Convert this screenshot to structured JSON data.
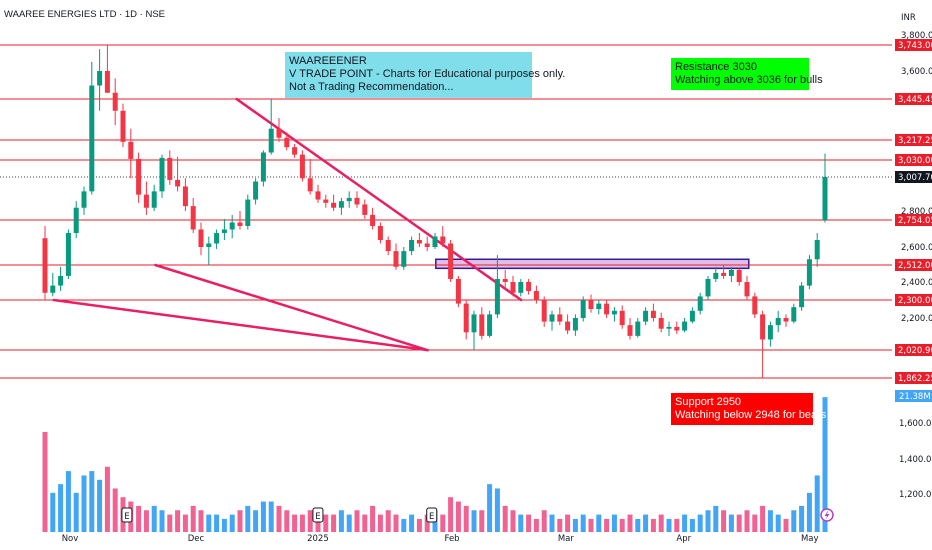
{
  "header": {
    "title": "WAAREE ENERGIES LTD · 1D · NSE"
  },
  "currency": "INR",
  "colors": {
    "up": "#089981",
    "down": "#f23645",
    "level_line": "#e91e2b",
    "trendline": "#e91e63",
    "zone_fill": "#e1bee7",
    "zone_border": "#311b92",
    "vol_up": "#42a5f5",
    "vol_down": "#f06292",
    "note_blue": "#80deea",
    "note_green": "#00ff00",
    "note_red": "#ff0000"
  },
  "notes": {
    "info": [
      "WAAREEENER",
      "V TRADE POINT - Charts for Educational purposes only.",
      "Not a Trading Recommendation..."
    ],
    "resistance": [
      "Resistance 3030",
      "Watching above 3036 for bulls"
    ],
    "support": [
      "Support 2950",
      "Watching below 2948 for bears"
    ]
  },
  "chart_data": {
    "type": "candlestick",
    "price_axis_ticks": [
      "3,800.00",
      "3,600.00",
      "2,800.00",
      "2,600.00",
      "2,400.00",
      "2,200.00"
    ],
    "horizontal_levels": [
      {
        "value": 3743.0,
        "label": "3,743.00"
      },
      {
        "value": 3445.45,
        "label": "3,445.45"
      },
      {
        "value": 3217.25,
        "label": "3,217.25"
      },
      {
        "value": 3030.0,
        "label": "3,030.00"
      },
      {
        "value": 2754.05,
        "label": "2,754.05"
      },
      {
        "value": 2512.0,
        "label": "2,512.00"
      },
      {
        "value": 2300.0,
        "label": "2,300.00"
      },
      {
        "value": 2020.9,
        "label": "2,020.90"
      },
      {
        "value": 1862.25,
        "label": "1,862.25"
      }
    ],
    "last_price": {
      "value": 3007.7,
      "label": "3,007.70"
    },
    "resistance_zone": {
      "from_date": "2025-01-30",
      "to_date": "2025-04-17",
      "low": 2490,
      "high": 2540
    },
    "trendlines": [
      {
        "from": {
          "date": "2024-10-28",
          "price": 2300
        },
        "to": {
          "date": "2025-01-28",
          "price": 2020
        }
      },
      {
        "from": {
          "date": "2024-11-22",
          "price": 2512
        },
        "to": {
          "date": "2025-01-28",
          "price": 2020
        }
      },
      {
        "from": {
          "date": "2024-12-12",
          "price": 3445
        },
        "to": {
          "date": "2025-02-20",
          "price": 2300
        }
      }
    ],
    "volume_axis_ticks": [
      "1,600.00",
      "1,400.00",
      "1,200.00"
    ],
    "volume_last": {
      "label": "21.38M"
    },
    "x_ticks": [
      {
        "label": "Nov",
        "date": "2024-11-01"
      },
      {
        "label": "Dec",
        "date": "2024-12-02"
      },
      {
        "label": "2025",
        "date": "2025-01-01"
      },
      {
        "label": "Feb",
        "date": "2025-02-03"
      },
      {
        "label": "Mar",
        "date": "2025-03-03"
      },
      {
        "label": "Apr",
        "date": "2025-04-01"
      },
      {
        "label": "May",
        "date": "2025-05-02"
      }
    ],
    "event_markers": [
      {
        "label": "E",
        "date": "2024-11-15"
      },
      {
        "label": "E",
        "date": "2025-01-01"
      },
      {
        "label": "E",
        "date": "2025-01-29"
      }
    ],
    "candles": [
      {
        "o": 2650,
        "h": 2720,
        "l": 2300,
        "c": 2340,
        "v": 23
      },
      {
        "o": 2340,
        "h": 2460,
        "l": 2320,
        "c": 2380,
        "v": 9
      },
      {
        "o": 2380,
        "h": 2500,
        "l": 2350,
        "c": 2440,
        "v": 11
      },
      {
        "o": 2440,
        "h": 2700,
        "l": 2420,
        "c": 2680,
        "v": 14
      },
      {
        "o": 2680,
        "h": 2860,
        "l": 2650,
        "c": 2820,
        "v": 9
      },
      {
        "o": 2820,
        "h": 2950,
        "l": 2780,
        "c": 2920,
        "v": 13
      },
      {
        "o": 2920,
        "h": 3650,
        "l": 2900,
        "c": 3520,
        "v": 14
      },
      {
        "o": 3520,
        "h": 3720,
        "l": 3380,
        "c": 3600,
        "v": 12
      },
      {
        "o": 3600,
        "h": 3743,
        "l": 3480,
        "c": 3480,
        "v": 15
      },
      {
        "o": 3480,
        "h": 3560,
        "l": 3300,
        "c": 3380,
        "v": 10
      },
      {
        "o": 3380,
        "h": 3420,
        "l": 3150,
        "c": 3200,
        "v": 8
      },
      {
        "o": 3200,
        "h": 3280,
        "l": 3000,
        "c": 3040,
        "v": 7
      },
      {
        "o": 3040,
        "h": 3100,
        "l": 2850,
        "c": 2900,
        "v": 6
      },
      {
        "o": 2900,
        "h": 2980,
        "l": 2780,
        "c": 2820,
        "v": 5
      },
      {
        "o": 2820,
        "h": 2960,
        "l": 2800,
        "c": 2920,
        "v": 6
      },
      {
        "o": 2920,
        "h": 3080,
        "l": 2880,
        "c": 3050,
        "v": 5
      },
      {
        "o": 3050,
        "h": 3120,
        "l": 2960,
        "c": 2990,
        "v": 4
      },
      {
        "o": 2990,
        "h": 3060,
        "l": 2920,
        "c": 2950,
        "v": 5
      },
      {
        "o": 2950,
        "h": 3000,
        "l": 2800,
        "c": 2830,
        "v": 4
      },
      {
        "o": 2830,
        "h": 2880,
        "l": 2680,
        "c": 2700,
        "v": 6
      },
      {
        "o": 2700,
        "h": 2740,
        "l": 2560,
        "c": 2600,
        "v": 5
      },
      {
        "o": 2600,
        "h": 2660,
        "l": 2512,
        "c": 2620,
        "v": 4
      },
      {
        "o": 2620,
        "h": 2700,
        "l": 2590,
        "c": 2680,
        "v": 4
      },
      {
        "o": 2680,
        "h": 2760,
        "l": 2640,
        "c": 2700,
        "v": 3
      },
      {
        "o": 2700,
        "h": 2780,
        "l": 2650,
        "c": 2740,
        "v": 4
      },
      {
        "o": 2740,
        "h": 2800,
        "l": 2700,
        "c": 2720,
        "v": 5
      },
      {
        "o": 2720,
        "h": 2900,
        "l": 2700,
        "c": 2870,
        "v": 6
      },
      {
        "o": 2870,
        "h": 3000,
        "l": 2840,
        "c": 2980,
        "v": 5
      },
      {
        "o": 2980,
        "h": 3120,
        "l": 2950,
        "c": 3100,
        "v": 7
      },
      {
        "o": 3100,
        "h": 3445,
        "l": 3080,
        "c": 3280,
        "v": 7
      },
      {
        "o": 3280,
        "h": 3340,
        "l": 3200,
        "c": 3230,
        "v": 6
      },
      {
        "o": 3230,
        "h": 3260,
        "l": 3120,
        "c": 3150,
        "v": 5
      },
      {
        "o": 3150,
        "h": 3180,
        "l": 3050,
        "c": 3080,
        "v": 4
      },
      {
        "o": 3080,
        "h": 3120,
        "l": 2980,
        "c": 3000,
        "v": 4
      },
      {
        "o": 3000,
        "h": 3040,
        "l": 2900,
        "c": 2920,
        "v": 5
      },
      {
        "o": 2920,
        "h": 2960,
        "l": 2850,
        "c": 2870,
        "v": 3
      },
      {
        "o": 2870,
        "h": 2900,
        "l": 2820,
        "c": 2850,
        "v": 4
      },
      {
        "o": 2850,
        "h": 2900,
        "l": 2800,
        "c": 2820,
        "v": 4
      },
      {
        "o": 2820,
        "h": 2880,
        "l": 2780,
        "c": 2860,
        "v": 5
      },
      {
        "o": 2860,
        "h": 2920,
        "l": 2820,
        "c": 2880,
        "v": 4
      },
      {
        "o": 2880,
        "h": 2920,
        "l": 2820,
        "c": 2840,
        "v": 5
      },
      {
        "o": 2840,
        "h": 2870,
        "l": 2760,
        "c": 2780,
        "v": 4
      },
      {
        "o": 2780,
        "h": 2820,
        "l": 2700,
        "c": 2720,
        "v": 6
      },
      {
        "o": 2720,
        "h": 2740,
        "l": 2620,
        "c": 2640,
        "v": 4
      },
      {
        "o": 2640,
        "h": 2660,
        "l": 2560,
        "c": 2580,
        "v": 5
      },
      {
        "o": 2580,
        "h": 2620,
        "l": 2480,
        "c": 2500,
        "v": 4
      },
      {
        "o": 2500,
        "h": 2600,
        "l": 2480,
        "c": 2580,
        "v": 3
      },
      {
        "o": 2580,
        "h": 2660,
        "l": 2560,
        "c": 2640,
        "v": 4
      },
      {
        "o": 2640,
        "h": 2680,
        "l": 2600,
        "c": 2620,
        "v": 3
      },
      {
        "o": 2620,
        "h": 2660,
        "l": 2580,
        "c": 2600,
        "v": 4
      },
      {
        "o": 2600,
        "h": 2680,
        "l": 2590,
        "c": 2660,
        "v": 5
      },
      {
        "o": 2660,
        "h": 2720,
        "l": 2600,
        "c": 2620,
        "v": 4
      },
      {
        "o": 2620,
        "h": 2640,
        "l": 2400,
        "c": 2420,
        "v": 8
      },
      {
        "o": 2420,
        "h": 2440,
        "l": 2260,
        "c": 2280,
        "v": 7
      },
      {
        "o": 2280,
        "h": 2300,
        "l": 2080,
        "c": 2120,
        "v": 6
      },
      {
        "o": 2120,
        "h": 2240,
        "l": 2020,
        "c": 2220,
        "v": 5
      },
      {
        "o": 2220,
        "h": 2260,
        "l": 2080,
        "c": 2100,
        "v": 5
      },
      {
        "o": 2100,
        "h": 2240,
        "l": 2090,
        "c": 2220,
        "v": 11
      },
      {
        "o": 2220,
        "h": 2560,
        "l": 2200,
        "c": 2420,
        "v": 10
      },
      {
        "o": 2420,
        "h": 2480,
        "l": 2360,
        "c": 2400,
        "v": 6
      },
      {
        "o": 2400,
        "h": 2440,
        "l": 2320,
        "c": 2340,
        "v": 5
      },
      {
        "o": 2340,
        "h": 2420,
        "l": 2320,
        "c": 2400,
        "v": 4
      },
      {
        "o": 2400,
        "h": 2420,
        "l": 2330,
        "c": 2350,
        "v": 4
      },
      {
        "o": 2350,
        "h": 2380,
        "l": 2280,
        "c": 2300,
        "v": 3
      },
      {
        "o": 2300,
        "h": 2320,
        "l": 2150,
        "c": 2180,
        "v": 5
      },
      {
        "o": 2180,
        "h": 2240,
        "l": 2130,
        "c": 2220,
        "v": 4
      },
      {
        "o": 2220,
        "h": 2260,
        "l": 2160,
        "c": 2180,
        "v": 3
      },
      {
        "o": 2180,
        "h": 2220,
        "l": 2110,
        "c": 2130,
        "v": 4
      },
      {
        "o": 2130,
        "h": 2220,
        "l": 2100,
        "c": 2200,
        "v": 3
      },
      {
        "o": 2200,
        "h": 2320,
        "l": 2180,
        "c": 2300,
        "v": 4
      },
      {
        "o": 2300,
        "h": 2330,
        "l": 2230,
        "c": 2250,
        "v": 3
      },
      {
        "o": 2250,
        "h": 2300,
        "l": 2220,
        "c": 2280,
        "v": 4
      },
      {
        "o": 2280,
        "h": 2300,
        "l": 2200,
        "c": 2220,
        "v": 3
      },
      {
        "o": 2220,
        "h": 2260,
        "l": 2180,
        "c": 2240,
        "v": 4
      },
      {
        "o": 2240,
        "h": 2270,
        "l": 2140,
        "c": 2160,
        "v": 3
      },
      {
        "o": 2160,
        "h": 2200,
        "l": 2080,
        "c": 2100,
        "v": 4
      },
      {
        "o": 2100,
        "h": 2200,
        "l": 2090,
        "c": 2180,
        "v": 3
      },
      {
        "o": 2180,
        "h": 2260,
        "l": 2160,
        "c": 2240,
        "v": 4
      },
      {
        "o": 2240,
        "h": 2280,
        "l": 2180,
        "c": 2200,
        "v": 3
      },
      {
        "o": 2200,
        "h": 2230,
        "l": 2120,
        "c": 2140,
        "v": 4
      },
      {
        "o": 2140,
        "h": 2180,
        "l": 2100,
        "c": 2150,
        "v": 3
      },
      {
        "o": 2150,
        "h": 2180,
        "l": 2110,
        "c": 2130,
        "v": 3
      },
      {
        "o": 2130,
        "h": 2200,
        "l": 2120,
        "c": 2180,
        "v": 4
      },
      {
        "o": 2180,
        "h": 2260,
        "l": 2170,
        "c": 2240,
        "v": 3
      },
      {
        "o": 2240,
        "h": 2340,
        "l": 2220,
        "c": 2320,
        "v": 4
      },
      {
        "o": 2320,
        "h": 2440,
        "l": 2300,
        "c": 2420,
        "v": 5
      },
      {
        "o": 2420,
        "h": 2500,
        "l": 2400,
        "c": 2460,
        "v": 6
      },
      {
        "o": 2460,
        "h": 2512,
        "l": 2420,
        "c": 2440,
        "v": 5
      },
      {
        "o": 2440,
        "h": 2500,
        "l": 2400,
        "c": 2480,
        "v": 4
      },
      {
        "o": 2480,
        "h": 2490,
        "l": 2380,
        "c": 2400,
        "v": 4
      },
      {
        "o": 2400,
        "h": 2440,
        "l": 2300,
        "c": 2320,
        "v": 5
      },
      {
        "o": 2320,
        "h": 2340,
        "l": 2200,
        "c": 2220,
        "v": 4
      },
      {
        "o": 2220,
        "h": 2240,
        "l": 1862,
        "c": 2080,
        "v": 6
      },
      {
        "o": 2080,
        "h": 2180,
        "l": 2040,
        "c": 2160,
        "v": 5
      },
      {
        "o": 2160,
        "h": 2240,
        "l": 2120,
        "c": 2200,
        "v": 4
      },
      {
        "o": 2200,
        "h": 2220,
        "l": 2150,
        "c": 2180,
        "v": 3
      },
      {
        "o": 2180,
        "h": 2280,
        "l": 2170,
        "c": 2260,
        "v": 5
      },
      {
        "o": 2260,
        "h": 2400,
        "l": 2240,
        "c": 2380,
        "v": 6
      },
      {
        "o": 2380,
        "h": 2560,
        "l": 2360,
        "c": 2540,
        "v": 9
      },
      {
        "o": 2540,
        "h": 2680,
        "l": 2500,
        "c": 2640,
        "v": 13
      },
      {
        "o": 2754,
        "h": 3090,
        "l": 2740,
        "c": 3007.7,
        "v": 31
      }
    ]
  }
}
